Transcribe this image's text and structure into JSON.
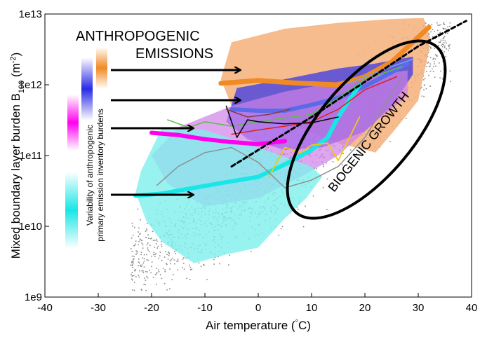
{
  "chart_data": {
    "type": "scatter",
    "title": "",
    "xlabel": "Air temperature (°C)",
    "ylabel": "Mixed boundary layer  burden B100 (m⁻²)",
    "ylabel_parts": {
      "main": "Mixed boundary layer  burden B",
      "sub": "100",
      "unit_open": " (m",
      "sup": "-2",
      "unit_close": ")"
    },
    "xlabel_parts": {
      "main": "Air temperature (",
      "deg": "°",
      "unit": "C)"
    },
    "xlim": [
      -40,
      40
    ],
    "ylim": [
      1000000000.0,
      10000000000000.0
    ],
    "yscale": "log",
    "grid": false,
    "x_ticks": [
      "-40",
      "-30",
      "-20",
      "-10",
      "0",
      "10",
      "20",
      "30",
      "40"
    ],
    "x_tick_values": [
      -40,
      -30,
      -20,
      -10,
      0,
      10,
      20,
      30,
      40
    ],
    "y_ticks": [
      "1e9",
      "1e10",
      "1e11",
      "1e12",
      "1e13"
    ],
    "y_tick_values": [
      1000000000.0,
      10000000000.0,
      100000000000.0,
      1000000000000.0,
      10000000000000.0
    ],
    "annotations": {
      "anthropogenic": [
        "ANTHROPOGENIC",
        "EMISSIONS"
      ],
      "biogenic": "BIOGENIC GROWTH",
      "variability": [
        "Variability of anthropogenic",
        "primary emission inventory burdens"
      ]
    },
    "colors": {
      "orange": "#f08a24",
      "blue": "#2a2ae6",
      "magenta": "#ff00ee",
      "cyan": "#19e6e6",
      "grey_points": "#8a8a8a"
    },
    "bands": [
      {
        "name": "orange",
        "color": "#f5b07a",
        "opacity": 0.85,
        "upper": [
          [
            -5,
            4000000000000.0
          ],
          [
            5,
            6200000000000.0
          ],
          [
            15,
            7500000000000.0
          ],
          [
            25,
            8500000000000.0
          ],
          [
            31,
            8800000000000.0
          ],
          [
            32,
            5000000000000.0
          ]
        ],
        "lower": [
          [
            32,
            3000000000000.0
          ],
          [
            30,
            600000000000.0
          ],
          [
            26,
            250000000000.0
          ],
          [
            22,
            110000000000.0
          ],
          [
            15,
            150000000000.0
          ],
          [
            5,
            300000000000.0
          ],
          [
            -5,
            500000000000.0
          ],
          [
            -7,
            1200000000000.0
          ]
        ]
      },
      {
        "name": "blue",
        "color": "#3a3ae8",
        "opacity": 0.75,
        "upper": [
          [
            -4,
            900000000000.0
          ],
          [
            5,
            1200000000000.0
          ],
          [
            15,
            1700000000000.0
          ],
          [
            22,
            2000000000000.0
          ],
          [
            29,
            2500000000000.0
          ]
        ],
        "lower": [
          [
            29,
            1400000000000.0
          ],
          [
            25,
            500000000000.0
          ],
          [
            20,
            220000000000.0
          ],
          [
            12,
            130000000000.0
          ],
          [
            5,
            120000000000.0
          ],
          [
            -2,
            170000000000.0
          ],
          [
            -6,
            300000000000.0
          ]
        ]
      },
      {
        "name": "magenta",
        "color": "#d080e8",
        "opacity": 0.7,
        "upper": [
          [
            -15,
            250000000000.0
          ],
          [
            -5,
            500000000000.0
          ],
          [
            5,
            800000000000.0
          ],
          [
            12,
            1000000000000.0
          ],
          [
            20,
            1300000000000.0
          ],
          [
            28,
            1600000000000.0
          ]
        ],
        "lower": [
          [
            28,
            700000000000.0
          ],
          [
            22,
            300000000000.0
          ],
          [
            15,
            100000000000.0
          ],
          [
            8,
            50000000000.0
          ],
          [
            0,
            25000000000.0
          ],
          [
            -10,
            19000000000.0
          ],
          [
            -17,
            40000000000.0
          ],
          [
            -20,
            100000000000.0
          ]
        ]
      },
      {
        "name": "cyan",
        "color": "#7ef0ec",
        "opacity": 0.8,
        "upper": [
          [
            -22,
            60000000000.0
          ],
          [
            -18,
            250000000000.0
          ],
          [
            -10,
            230000000000.0
          ],
          [
            0,
            130000000000.0
          ],
          [
            10,
            70000000000.0
          ],
          [
            12,
            50000000000.0
          ],
          [
            9,
            25000000000.0
          ]
        ],
        "lower": [
          [
            9,
            25000000000.0
          ],
          [
            5,
            13000000000.0
          ],
          [
            0,
            5000000000.0
          ],
          [
            -6,
            4000000000.0
          ],
          [
            -12,
            3000000000.0
          ],
          [
            -18,
            6000000000.0
          ],
          [
            -21,
            12000000000.0
          ],
          [
            -23,
            30000000000.0
          ]
        ]
      }
    ],
    "series": [
      {
        "name": "orange",
        "color": "#f08a24",
        "width": 7,
        "x": [
          -7,
          0,
          8,
          15,
          20,
          25,
          29,
          32
        ],
        "y": [
          1050000000000.0,
          1150000000000.0,
          1050000000000.0,
          1000000000000.0,
          1300000000000.0,
          2100000000000.0,
          4000000000000.0,
          6500000000000.0
        ]
      },
      {
        "name": "blue",
        "color": "#5a6be8",
        "width": 6,
        "x": [
          -5,
          0,
          5,
          10,
          15,
          20,
          25,
          28
        ],
        "y": [
          450000000000.0,
          430000000000.0,
          430000000000.0,
          520000000000.0,
          650000000000.0,
          950000000000.0,
          1500000000000.0,
          2000000000000.0
        ]
      },
      {
        "name": "magenta",
        "color": "#ff00ee",
        "width": 6,
        "x": [
          -20,
          -15,
          -10,
          -5,
          0,
          5
        ],
        "y": [
          210000000000.0,
          195000000000.0,
          170000000000.0,
          155000000000.0,
          145000000000.0,
          160000000000.0
        ]
      },
      {
        "name": "cyan",
        "color": "#19e6e6",
        "width": 6,
        "x": [
          -23,
          -18,
          -12,
          -6,
          0,
          5,
          10,
          13,
          15,
          19
        ],
        "y": [
          27000000000.0,
          29000000000.0,
          35000000000.0,
          42000000000.0,
          50000000000.0,
          75000000000.0,
          120000000000.0,
          180000000000.0,
          350000000000.0,
          1000000000000.0
        ]
      },
      {
        "name": "green",
        "color": "#55c043",
        "width": 1.5,
        "x": [
          -17,
          -13,
          -10,
          -5,
          0,
          5,
          10,
          15,
          20,
          27
        ],
        "y": [
          320000000000.0,
          250000000000.0,
          300000000000.0,
          260000000000.0,
          300000000000.0,
          340000000000.0,
          380000000000.0,
          650000000000.0,
          1200000000000.0,
          1800000000000.0
        ]
      },
      {
        "name": "red",
        "color": "#e02020",
        "width": 1.5,
        "x": [
          -5,
          0,
          5,
          10,
          15,
          20,
          26
        ],
        "y": [
          200000000000.0,
          230000000000.0,
          260000000000.0,
          300000000000.0,
          450000000000.0,
          850000000000.0,
          1300000000000.0
        ]
      },
      {
        "name": "black",
        "color": "#000000",
        "width": 1.5,
        "x": [
          -6,
          -4,
          -2,
          0,
          5,
          10,
          15
        ],
        "y": [
          500000000000.0,
          180000000000.0,
          320000000000.0,
          300000000000.0,
          280000000000.0,
          290000000000.0,
          350000000000.0
        ]
      },
      {
        "name": "yellow",
        "color": "#f0c814",
        "width": 1.8,
        "x": [
          2,
          5,
          8,
          10,
          13,
          15,
          19
        ],
        "y": [
          50000000000.0,
          130000000000.0,
          110000000000.0,
          140000000000.0,
          150000000000.0,
          85000000000.0,
          350000000000.0
        ]
      },
      {
        "name": "grey",
        "color": "#909090",
        "width": 1.5,
        "x": [
          -19,
          -15,
          -10,
          -5,
          0,
          5,
          10,
          15,
          20,
          27
        ],
        "y": [
          38000000000.0,
          70000000000.0,
          110000000000.0,
          130000000000.0,
          80000000000.0,
          35000000000.0,
          45000000000.0,
          70000000000.0,
          180000000000.0,
          1300000000000.0
        ]
      },
      {
        "name": "brown",
        "color": "#8c3c3c",
        "width": 1.5,
        "x": [
          -6,
          -2,
          2,
          6
        ],
        "y": [
          450000000000.0,
          350000000000.0,
          380000000000.0,
          450000000000.0
        ]
      },
      {
        "name": "light-blue",
        "color": "#70a0ff",
        "width": 1.5,
        "x": [
          15,
          20,
          25,
          29
        ],
        "y": [
          900000000000.0,
          1300000000000.0,
          1800000000000.0,
          2300000000000.0
        ]
      },
      {
        "name": "dashed-black",
        "color": "#000000",
        "width": 3,
        "dashed": true,
        "x": [
          -5,
          10,
          20,
          30,
          39
        ],
        "y": [
          70000000000.0,
          350000000000.0,
          1100000000000.0,
          3500000000000.0,
          8000000000000.0
        ]
      }
    ]
  }
}
